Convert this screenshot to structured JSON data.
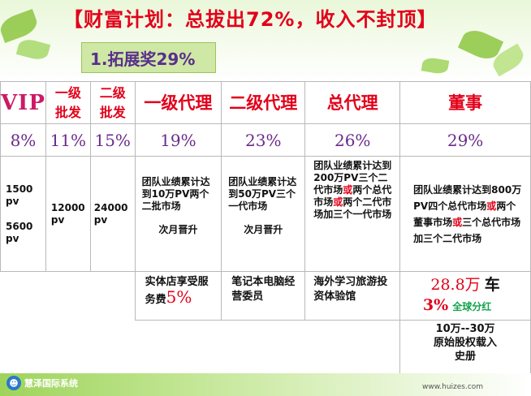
{
  "title": "【财富计划：总拔出72%，收入不封顶】",
  "subtitle": "1.拓展奖29%",
  "headers": [
    "VIP",
    "一级批发",
    "二级批发",
    "一级代理",
    "二级代理",
    "总代理",
    "董事"
  ],
  "percents": [
    "8%",
    "11%",
    "15%",
    "19%",
    "23%",
    "26%",
    "29%"
  ],
  "requirements": {
    "vip_a": "1500 pv",
    "vip_b": "5600 pv",
    "wholesale1": "12000 pv",
    "wholesale2": "24000 pv",
    "agent1_line1": "团队业绩累计达到10万PV两个二批市场",
    "agent1_line2": "次月晋升",
    "agent2_line1": "团队业绩累计达到50万PV三个一代市场",
    "agent2_line2": "次月晋升",
    "general_p1": "团队业绩累计达到200万PV三个二代市场",
    "general_or1": "或",
    "general_p2": "两个总代市场",
    "general_or2": "或",
    "general_p3": "两个二代市场加三个一代市场",
    "director_p1": "团队业绩累计达到800万PV四个总代市场",
    "director_or1": "或",
    "director_p2": "两个董事市场",
    "director_or2": "或",
    "director_p3": "三个总代市场加三个二代市场"
  },
  "rewards": {
    "agent1_text": "实体店享受服务费",
    "agent1_pct": "5%",
    "agent2_text": "笔记本电脑经营委员",
    "general_text": "海外学习旅游投资体验馆",
    "director_car_amount": "28.8万",
    "director_car_label": "车",
    "director_dividend_pct": "3%",
    "director_dividend_label": "全球分红",
    "director_equity": "10万--30万原始股权载入史册"
  },
  "footer": {
    "company": "慧泽国际系统",
    "url": "www.huizes.com"
  },
  "colors": {
    "title_red": "#e2001a",
    "header_red": "#e2001a",
    "percent_purple": "#6b2a8b",
    "leaf_green": "#8cc63f"
  }
}
